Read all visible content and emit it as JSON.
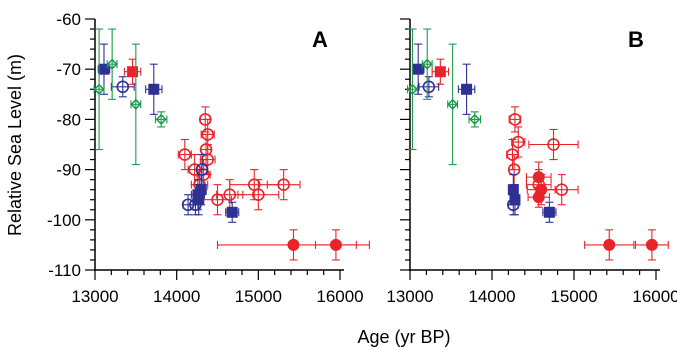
{
  "figure": {
    "xlabel": "Age (yr BP)",
    "ylabel": "Relative Sea Level (m)"
  },
  "colors": {
    "red": "#e8242a",
    "blue": "#2e3193",
    "green": "#1a9a4a",
    "axis": "#000000"
  },
  "chart_data": [
    {
      "type": "scatter",
      "panel_label": "A",
      "xlabel": "Age (yr BP)",
      "ylabel": "Relative Sea Level (m)",
      "xlim": [
        13000,
        16000
      ],
      "ylim": [
        -110,
        -60
      ],
      "x_ticks": [
        "13000",
        "14000",
        "15000",
        "16000"
      ],
      "y_ticks": [
        "-60",
        "-70",
        "-80",
        "-90",
        "-100",
        "-110"
      ],
      "grid": false,
      "series": [
        {
          "color": "red",
          "marker": "filled-circle",
          "points": [
            [
              15430,
              -105,
              930,
              3
            ],
            [
              15950,
              -105,
              250,
              3
            ]
          ]
        },
        {
          "color": "red",
          "marker": "open-circle",
          "points": [
            [
              14350,
              -80,
              60,
              2.5
            ],
            [
              14380,
              -83,
              80,
              3
            ],
            [
              14360,
              -86,
              60,
              3
            ],
            [
              14100,
              -87,
              80,
              3
            ],
            [
              14380,
              -88,
              90,
              3
            ],
            [
              14220,
              -90,
              80,
              3
            ],
            [
              14330,
              -91,
              80,
              3
            ],
            [
              14280,
              -93,
              100,
              3
            ],
            [
              14950,
              -93,
              300,
              3
            ],
            [
              15310,
              -93,
              200,
              3
            ],
            [
              14650,
              -95,
              160,
              3
            ],
            [
              15000,
              -95,
              250,
              3
            ],
            [
              14500,
              -96,
              170,
              3
            ]
          ]
        },
        {
          "color": "red",
          "marker": "filled-square",
          "points": [
            [
              13460,
              -70.5,
              100,
              2.5
            ]
          ]
        },
        {
          "color": "blue",
          "marker": "filled-square",
          "points": [
            [
              13110,
              -70,
              70,
              5
            ],
            [
              13720,
              -74,
              100,
              5
            ],
            [
              14300,
              -94,
              60,
              3
            ],
            [
              14260,
              -95,
              80,
              3
            ],
            [
              14270,
              -96,
              50,
              3
            ],
            [
              14680,
              -98.5,
              80,
              2
            ]
          ]
        },
        {
          "color": "blue",
          "marker": "open-circle",
          "points": [
            [
              13340,
              -73.5,
              140,
              2
            ],
            [
              14310,
              -90,
              60,
              3
            ],
            [
              14140,
              -97,
              60,
              2
            ],
            [
              14230,
              -97,
              60,
              2
            ]
          ]
        },
        {
          "color": "green",
          "marker": "open-diamond",
          "points": [
            [
              13050,
              -74,
              60,
              12
            ],
            [
              13210,
              -69,
              60,
              7
            ],
            [
              13500,
              -77,
              60,
              12
            ],
            [
              13810,
              -80,
              70,
              1.5
            ]
          ]
        }
      ]
    },
    {
      "type": "scatter",
      "panel_label": "B",
      "xlabel": "Age (yr BP)",
      "ylabel": "Relative Sea Level (m)",
      "xlim": [
        13000,
        16000
      ],
      "ylim": [
        -110,
        -60
      ],
      "x_ticks": [
        "13000",
        "14000",
        "15000",
        "16000"
      ],
      "y_ticks": [],
      "grid": false,
      "series": [
        {
          "color": "red",
          "marker": "filled-circle",
          "points": [
            [
              14570,
              -91.5,
              150,
              3
            ],
            [
              14600,
              -94,
              170,
              3
            ],
            [
              14570,
              -95.5,
              130,
              2
            ],
            [
              15430,
              -105,
              300,
              3
            ],
            [
              15950,
              -105,
              200,
              3
            ]
          ]
        },
        {
          "color": "red",
          "marker": "open-circle",
          "points": [
            [
              14280,
              -80,
              70,
              2.5
            ],
            [
              14320,
              -84.5,
              80,
              3
            ],
            [
              14250,
              -87,
              70,
              3
            ],
            [
              14750,
              -85,
              300,
              3
            ],
            [
              14270,
              -90,
              60,
              3
            ],
            [
              14570,
              -93,
              150,
              3
            ],
            [
              14850,
              -94,
              200,
              3
            ]
          ]
        },
        {
          "color": "red",
          "marker": "filled-square",
          "points": [
            [
              13370,
              -70.5,
              100,
              2.5
            ]
          ]
        },
        {
          "color": "blue",
          "marker": "filled-square",
          "points": [
            [
              13100,
              -70,
              70,
              5
            ],
            [
              13690,
              -74,
              100,
              5
            ],
            [
              14260,
              -94,
              50,
              3
            ],
            [
              14280,
              -96,
              50,
              3
            ],
            [
              14700,
              -98.5,
              80,
              2
            ]
          ]
        },
        {
          "color": "blue",
          "marker": "open-circle",
          "points": [
            [
              13230,
              -73.5,
              120,
              2
            ],
            [
              14260,
              -97,
              60,
              2
            ]
          ]
        },
        {
          "color": "green",
          "marker": "open-diamond",
          "points": [
            [
              13030,
              -74,
              60,
              12
            ],
            [
              13210,
              -69,
              60,
              7
            ],
            [
              13520,
              -77,
              60,
              12
            ],
            [
              13790,
              -80,
              70,
              1.5
            ]
          ]
        }
      ]
    }
  ]
}
